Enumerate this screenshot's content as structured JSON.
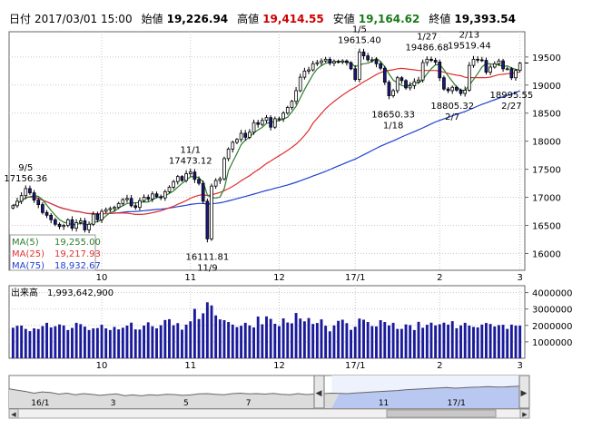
{
  "header": {
    "date_label": "日付",
    "date": "2017/03/01 15:00",
    "open_label": "始値",
    "open": "19,226.94",
    "high_label": "高値",
    "high": "19,414.55",
    "low_label": "安値",
    "low": "19,164.62",
    "close_label": "終値",
    "close": "19,393.54"
  },
  "colors": {
    "up": "#ffffff",
    "down": "#1a1a80",
    "ma5": "#2e7d2e",
    "ma25": "#e03030",
    "ma75": "#2040d0",
    "volume": "#1a1a9a",
    "high_value": "#cc0000",
    "low_value": "#1a7a1a",
    "grid": "#c8c8c8",
    "overview_fill": "#b9c8f0"
  },
  "chart_data": [
    {
      "type": "candlestick",
      "title": "",
      "ylim": [
        15700,
        19950
      ],
      "y_ticks": [
        16000,
        16500,
        17000,
        17500,
        18000,
        18500,
        19000,
        19500
      ],
      "x_tick_labels": [
        "10",
        "11",
        "12",
        "17/1",
        "2",
        "3"
      ],
      "x_tick_index": [
        21,
        42,
        63,
        81,
        101,
        120
      ],
      "annotations": [
        {
          "value": "17156.36",
          "date": "9/5",
          "index": 3
        },
        {
          "value": "17473.12",
          "date": "11/1",
          "index": 42
        },
        {
          "value": "16111.81",
          "date": "11/9",
          "index": 46
        },
        {
          "value": "19615.40",
          "date": "1/5",
          "index": 82
        },
        {
          "value": "19486.68",
          "date": "1/27",
          "index": 98
        },
        {
          "value": "19519.44",
          "date": "2/13",
          "index": 108
        },
        {
          "value": "18650.33",
          "date": "1/18",
          "index": 90
        },
        {
          "value": "18805.32",
          "date": "2/7",
          "index": 104
        },
        {
          "value": "18995.55",
          "date": "2/27",
          "index": 118
        }
      ],
      "moving_averages": [
        {
          "name": "MA(5)",
          "value": "19,255.00",
          "window": 5
        },
        {
          "name": "MA(25)",
          "value": "19,217.93",
          "window": 25
        },
        {
          "name": "MA(75)",
          "value": "18,932.67",
          "window": 75
        }
      ],
      "close_series": [
        16850,
        16930,
        17030,
        17156,
        17080,
        16950,
        16870,
        16730,
        16680,
        16600,
        16520,
        16480,
        16500,
        16600,
        16450,
        16550,
        16580,
        16420,
        16520,
        16700,
        16600,
        16750,
        16780,
        16800,
        16820,
        16890,
        16960,
        16980,
        16850,
        16820,
        16940,
        17000,
        16970,
        17060,
        17010,
        16990,
        17100,
        17180,
        17280,
        17370,
        17300,
        17420,
        17450,
        17320,
        17250,
        16930,
        16260,
        17200,
        17300,
        17330,
        17690,
        17860,
        17980,
        18030,
        18140,
        18070,
        18160,
        18330,
        18300,
        18370,
        18420,
        18250,
        18400,
        18400,
        18500,
        18600,
        18710,
        18900,
        19140,
        19250,
        19270,
        19380,
        19400,
        19430,
        19460,
        19390,
        19420,
        19410,
        19430,
        19400,
        19290,
        19100,
        19590,
        19520,
        19450,
        19450,
        19380,
        19300,
        19050,
        18810,
        18900,
        19130,
        19080,
        18950,
        18990,
        19060,
        19090,
        19400,
        19460,
        19440,
        19410,
        19130,
        18930,
        18900,
        18960,
        18910,
        18850,
        18910,
        19350,
        19460,
        19450,
        19440,
        19230,
        19320,
        19380,
        19430,
        19290,
        19290,
        19130,
        19260,
        19390
      ],
      "highlight_close": 19393.54
    },
    {
      "type": "bar",
      "title": "出来高",
      "current_value": "1,993,642,900",
      "ylim": [
        0,
        4200000000
      ],
      "y_ticks": [
        1000000000,
        2000000000,
        3000000000,
        4000000000
      ],
      "y_tick_labels": [
        "1000000",
        "2000000",
        "3000000",
        "4000000"
      ],
      "x_tick_labels": [
        "10",
        "11",
        "12",
        "17/1",
        "2",
        "3"
      ],
      "volume_series_millions": [
        1860,
        1980,
        1990,
        1790,
        1650,
        1820,
        1780,
        1960,
        2160,
        1880,
        1950,
        2060,
        2000,
        1720,
        1850,
        2160,
        2080,
        1930,
        1720,
        1820,
        1840,
        2040,
        1820,
        1720,
        1910,
        1760,
        1860,
        1990,
        2170,
        1760,
        1750,
        1990,
        2190,
        1950,
        1820,
        2010,
        2330,
        2380,
        2010,
        2140,
        1740,
        2050,
        2250,
        3010,
        2390,
        2740,
        3410,
        3220,
        2610,
        2370,
        2320,
        2210,
        2050,
        1900,
        1980,
        2160,
        2000,
        1880,
        2540,
        2070,
        2550,
        2400,
        2100,
        1960,
        2430,
        2180,
        2130,
        2760,
        2420,
        2250,
        2450,
        2090,
        2150,
        2370,
        1980,
        1640,
        2000,
        2280,
        2350,
        2140,
        1730,
        1920,
        2420,
        2350,
        2210,
        1960,
        1940,
        2320,
        2210,
        2000,
        2160,
        1790,
        1790,
        2060,
        2020,
        1720,
        2220,
        1860,
        2040,
        2170,
        2000,
        2070,
        2170,
        2050,
        2260,
        1830,
        2000,
        2160,
        1990,
        1910,
        1880,
        2050,
        2150,
        2090,
        1940,
        2020,
        2040,
        1790,
        2050,
        1990,
        1990
      ]
    },
    {
      "type": "area",
      "title": "",
      "x_tick_labels": [
        "16/1",
        "3",
        "5",
        "7",
        "11",
        "17/1"
      ],
      "overview_series": [
        0.72,
        0.66,
        0.6,
        0.52,
        0.58,
        0.55,
        0.48,
        0.52,
        0.45,
        0.5,
        0.47,
        0.42,
        0.46,
        0.49,
        0.41,
        0.44,
        0.4,
        0.45,
        0.43,
        0.47,
        0.46,
        0.42,
        0.44,
        0.49,
        0.5,
        0.47,
        0.45,
        0.5,
        0.52,
        0.49,
        0.5,
        0.48,
        0.51,
        0.47,
        0.45,
        0.5,
        0.46,
        0.48,
        0.5,
        0.52,
        0.51,
        0.5,
        0.53,
        0.55,
        0.58,
        0.6,
        0.62,
        0.64,
        0.68,
        0.7,
        0.72,
        0.74,
        0.76,
        0.78,
        0.75,
        0.77,
        0.79,
        0.8,
        0.82,
        0.8,
        0.81,
        0.83,
        0.85,
        0.82
      ],
      "selected_from_fraction": 0.62,
      "selected_to_fraction": 1.0
    }
  ]
}
